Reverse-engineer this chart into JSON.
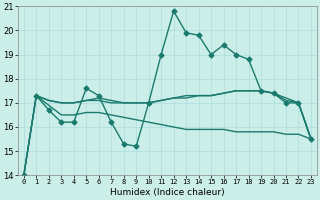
{
  "xlabel": "Humidex (Indice chaleur)",
  "background_color": "#cceee8",
  "grid_color": "#aadddd",
  "line_color": "#1a7a6e",
  "xlim": [
    -0.5,
    23.5
  ],
  "ylim": [
    14,
    21
  ],
  "yticks": [
    14,
    15,
    16,
    17,
    18,
    19,
    20,
    21
  ],
  "xticks": [
    0,
    1,
    2,
    3,
    4,
    5,
    6,
    7,
    8,
    9,
    10,
    11,
    12,
    13,
    14,
    15,
    16,
    17,
    18,
    19,
    20,
    21,
    22,
    23
  ],
  "series": [
    {
      "x": [
        0,
        1,
        2,
        3,
        4,
        5,
        6,
        7,
        8,
        9,
        10,
        11,
        12,
        13,
        14,
        15,
        16,
        17,
        18,
        19,
        20,
        21,
        22,
        23
      ],
      "y": [
        14.0,
        17.3,
        16.7,
        16.2,
        16.2,
        17.6,
        17.3,
        16.2,
        15.3,
        15.2,
        17.0,
        19.0,
        20.8,
        19.9,
        19.8,
        19.0,
        19.4,
        19.0,
        18.8,
        17.5,
        17.4,
        17.0,
        17.0,
        15.5
      ],
      "marker": "D",
      "markersize": 2.5,
      "linewidth": 1.0
    },
    {
      "x": [
        0,
        1,
        2,
        3,
        4,
        5,
        6,
        7,
        8,
        9,
        10,
        11,
        12,
        13,
        14,
        15,
        16,
        17,
        18,
        19,
        20,
        21,
        22,
        23
      ],
      "y": [
        14.0,
        17.3,
        17.1,
        17.0,
        17.0,
        17.1,
        17.1,
        17.0,
        17.0,
        17.0,
        17.0,
        17.1,
        17.2,
        17.2,
        17.3,
        17.3,
        17.4,
        17.5,
        17.5,
        17.5,
        17.4,
        17.2,
        17.0,
        15.5
      ],
      "marker": null,
      "markersize": 0,
      "linewidth": 1.0
    },
    {
      "x": [
        0,
        1,
        2,
        3,
        4,
        5,
        6,
        7,
        8,
        9,
        10,
        11,
        12,
        13,
        14,
        15,
        16,
        17,
        18,
        19,
        20,
        21,
        22,
        23
      ],
      "y": [
        14.0,
        17.3,
        16.9,
        16.5,
        16.5,
        16.6,
        16.6,
        16.5,
        16.4,
        16.3,
        16.2,
        16.1,
        16.0,
        15.9,
        15.9,
        15.9,
        15.9,
        15.8,
        15.8,
        15.8,
        15.8,
        15.7,
        15.7,
        15.5
      ],
      "marker": null,
      "markersize": 0,
      "linewidth": 1.0
    },
    {
      "x": [
        1,
        2,
        3,
        4,
        5,
        6,
        7,
        8,
        9,
        10,
        11,
        12,
        13,
        14,
        15,
        16,
        17,
        18,
        19,
        20,
        21,
        22,
        23
      ],
      "y": [
        17.3,
        17.1,
        17.0,
        17.0,
        17.1,
        17.2,
        17.1,
        17.0,
        17.0,
        17.0,
        17.1,
        17.2,
        17.3,
        17.3,
        17.3,
        17.4,
        17.5,
        17.5,
        17.5,
        17.4,
        17.1,
        17.0,
        15.5
      ],
      "marker": null,
      "markersize": 0,
      "linewidth": 1.0
    }
  ]
}
